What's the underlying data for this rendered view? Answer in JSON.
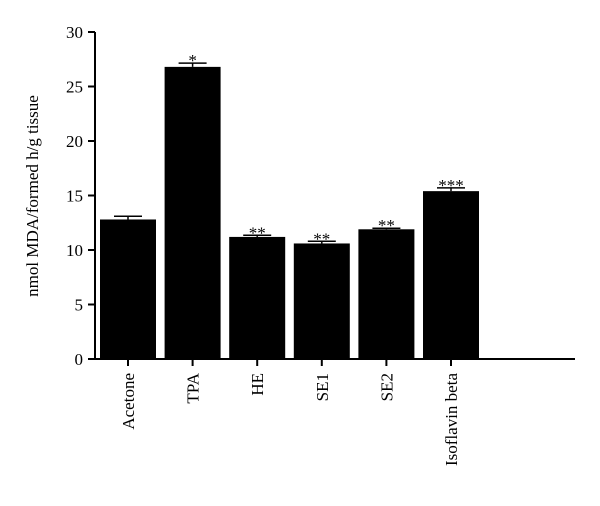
{
  "chart_data": {
    "type": "bar",
    "title": "",
    "xlabel": "",
    "ylabel": "nmol MDA/formed h/g tissue",
    "ylim": [
      0,
      30
    ],
    "yticks": [
      0,
      5,
      10,
      15,
      20,
      25,
      30
    ],
    "grid": false,
    "categories": [
      "Acetone",
      "TPA",
      "HE",
      "SE1",
      "SE2",
      "Isoflavin beta"
    ],
    "values": [
      12.8,
      26.8,
      11.2,
      10.6,
      11.9,
      15.4
    ],
    "errors": [
      0.3,
      0.35,
      0.15,
      0.2,
      0.1,
      0.3
    ],
    "annotations": [
      "",
      "*",
      "**",
      "**",
      "**",
      "***"
    ],
    "bar_color": "#000000"
  }
}
